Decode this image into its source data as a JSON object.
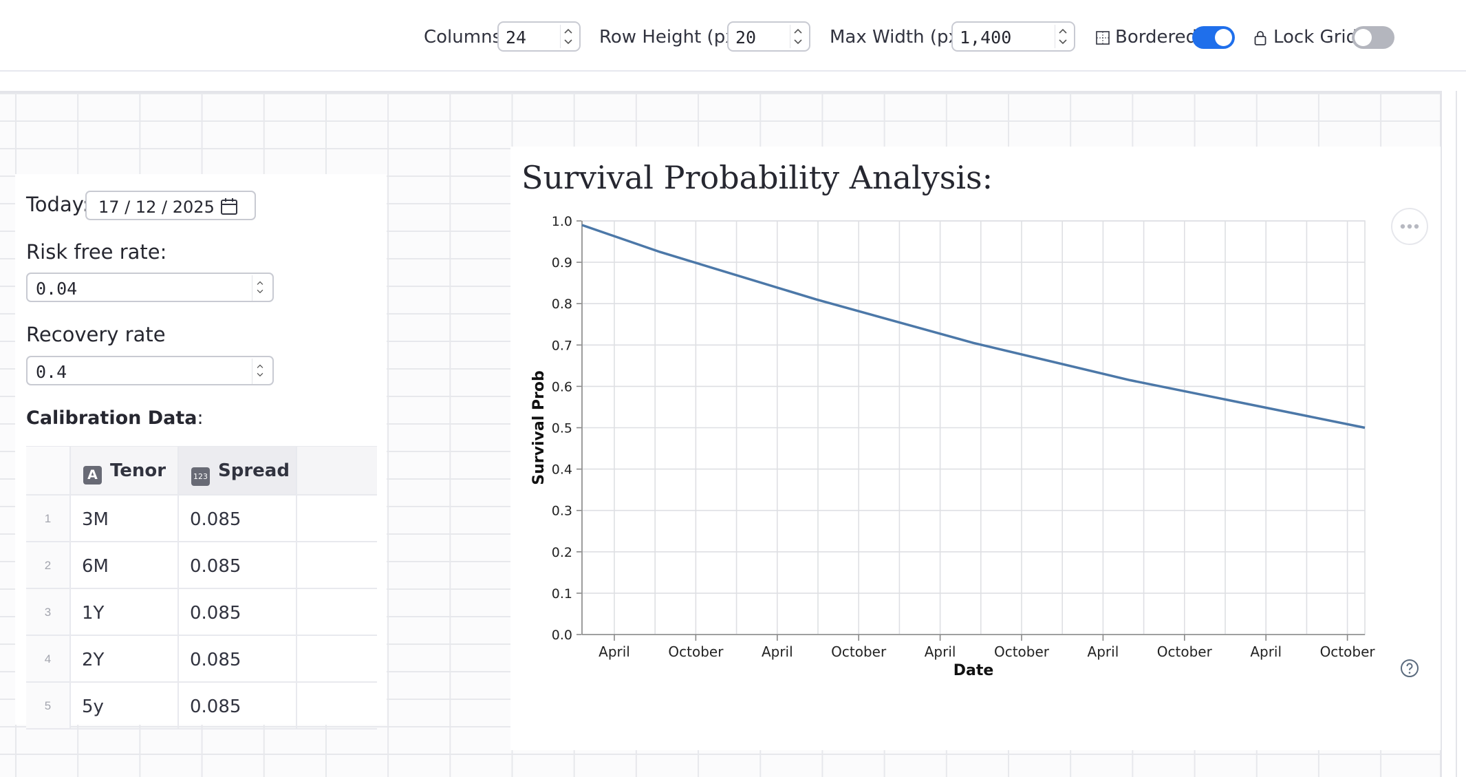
{
  "toolbar": {
    "columns_label": "Columns",
    "columns_value": "24",
    "row_height_label": "Row Height (px)",
    "row_height_value": "20",
    "max_width_label": "Max Width (px)",
    "max_width_value": "1,400",
    "bordered_label": "Bordered",
    "bordered_on": true,
    "lock_grid_label": "Lock Grid",
    "lock_grid_on": false,
    "accent_color": "#1f6feb"
  },
  "inputs": {
    "today_label": "Today:",
    "today_value": "17 / 12 / 2025",
    "risk_free_label": "Risk free rate:",
    "risk_free_value": "0.04",
    "recovery_label": "Recovery rate",
    "recovery_value": "0.4"
  },
  "calibration": {
    "title": "Calibration Data",
    "suffix": ":",
    "columns": [
      {
        "label": "Tenor",
        "type_icon": "A"
      },
      {
        "label": "Spread",
        "type_icon": "123"
      }
    ],
    "rows": [
      {
        "index": "1",
        "tenor": "3M",
        "spread": "0.085"
      },
      {
        "index": "2",
        "tenor": "6M",
        "spread": "0.085"
      },
      {
        "index": "3",
        "tenor": "1Y",
        "spread": "0.085"
      },
      {
        "index": "4",
        "tenor": "2Y",
        "spread": "0.085"
      },
      {
        "index": "5",
        "tenor": "5y",
        "spread": "0.085"
      }
    ]
  },
  "chart": {
    "heading": "Survival Probability Analysis:"
  },
  "chart_data": {
    "type": "line",
    "xlabel": "Date",
    "ylabel": "Survival Prob",
    "x_ticks": [
      "April",
      "October",
      "April",
      "October",
      "April",
      "October",
      "April",
      "October",
      "April",
      "October"
    ],
    "x": [
      "2025-12-17",
      "2026-06-17",
      "2027-06-17",
      "2028-06-17",
      "2029-06-17",
      "2030-12-17"
    ],
    "y": [
      0.99,
      0.925,
      0.81,
      0.705,
      0.615,
      0.5
    ],
    "ylim": [
      0,
      1
    ],
    "y_ticks": [
      "0.0",
      "0.1",
      "0.2",
      "0.3",
      "0.4",
      "0.5",
      "0.6",
      "0.7",
      "0.8",
      "0.9",
      "1.0"
    ],
    "line_color": "#4c78a8",
    "grid": true
  }
}
